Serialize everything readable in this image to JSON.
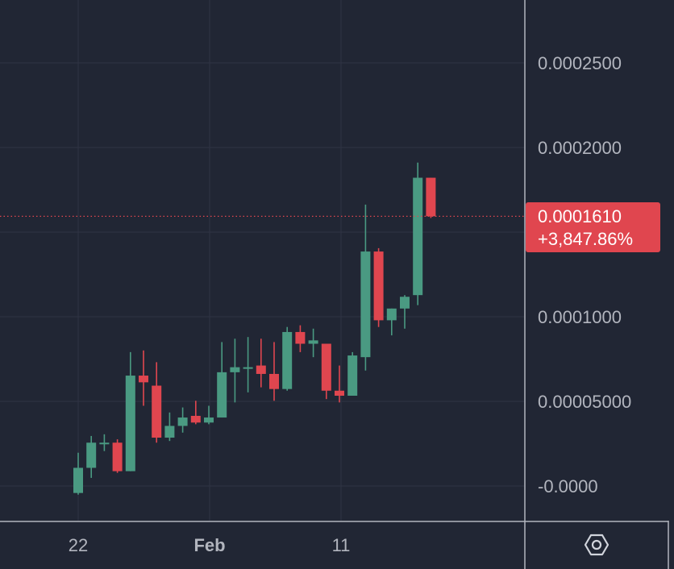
{
  "chart_data": {
    "type": "candlestick",
    "x_labels": [
      "22",
      "Feb",
      "11"
    ],
    "y_ticks": [
      "-0.0000",
      "0.00005000",
      "0.0001000",
      "0.0002000",
      "0.0002500"
    ],
    "ylim": [
      -2.05e-05,
      0.00029
    ],
    "grid": true,
    "colors": {
      "up": "#4a9a82",
      "down": "#e0464f",
      "background": "#212634",
      "grid": "#2f3444"
    },
    "candles": [
      {
        "o": -4e-06,
        "h": 2e-05,
        "l": -5e-06,
        "c": 1.1e-05
      },
      {
        "o": 1.1e-05,
        "h": 3e-05,
        "l": 5e-06,
        "c": 2.6e-05
      },
      {
        "o": 2.6e-05,
        "h": 3.1e-05,
        "l": 2.1e-05,
        "c": 2.6e-05
      },
      {
        "o": 2.6e-05,
        "h": 2.8e-05,
        "l": 8e-06,
        "c": 9e-06
      },
      {
        "o": 9e-06,
        "h": 8e-05,
        "l": 9e-06,
        "c": 6.6e-05
      },
      {
        "o": 6.6e-05,
        "h": 8.1e-05,
        "l": 4.8e-05,
        "c": 6.2e-05
      },
      {
        "o": 6e-05,
        "h": 7.4e-05,
        "l": 2.6e-05,
        "c": 2.9e-05
      },
      {
        "o": 2.9e-05,
        "h": 4.4e-05,
        "l": 2.7e-05,
        "c": 3.6e-05
      },
      {
        "o": 3.6e-05,
        "h": 4.7e-05,
        "l": 3.2e-05,
        "c": 4.1e-05
      },
      {
        "o": 4.2e-05,
        "h": 5.1e-05,
        "l": 3.7e-05,
        "c": 3.8e-05
      },
      {
        "o": 3.8e-05,
        "h": 4.8e-05,
        "l": 3.7e-05,
        "c": 4.1e-05
      },
      {
        "o": 4.1e-05,
        "h": 8.6e-05,
        "l": 4.1e-05,
        "c": 6.8e-05
      },
      {
        "o": 6.8e-05,
        "h": 8.8e-05,
        "l": 5e-05,
        "c": 7.1e-05
      },
      {
        "o": 7.1e-05,
        "h": 8.9e-05,
        "l": 5.6e-05,
        "c": 7.1e-05
      },
      {
        "o": 7.2e-05,
        "h": 8.8e-05,
        "l": 5.9e-05,
        "c": 6.7e-05
      },
      {
        "o": 6.7e-05,
        "h": 8.6e-05,
        "l": 5.1e-05,
        "c": 5.8e-05
      },
      {
        "o": 5.8e-05,
        "h": 9.5e-05,
        "l": 5.7e-05,
        "c": 9.2e-05
      },
      {
        "o": 9.2e-05,
        "h": 9.6e-05,
        "l": 8e-05,
        "c": 8.5e-05
      },
      {
        "o": 8.5e-05,
        "h": 9.4e-05,
        "l": 7.7e-05,
        "c": 8.7e-05
      },
      {
        "o": 8.5e-05,
        "h": 8.5e-05,
        "l": 5.2e-05,
        "c": 5.7e-05
      },
      {
        "o": 5.7e-05,
        "h": 7.2e-05,
        "l": 5e-05,
        "c": 5.4e-05
      },
      {
        "o": 5.4e-05,
        "h": 8e-05,
        "l": 5.4e-05,
        "c": 7.8e-05
      },
      {
        "o": 7.7e-05,
        "h": 0.000168,
        "l": 6.9e-05,
        "c": 0.00014
      },
      {
        "o": 0.00014,
        "h": 0.000142,
        "l": 9.5e-05,
        "c": 9.9e-05
      },
      {
        "o": 9.9e-05,
        "h": 0.000106,
        "l": 9e-05,
        "c": 0.000106
      },
      {
        "o": 0.000106,
        "h": 0.000114,
        "l": 9.4e-05,
        "c": 0.000113
      },
      {
        "o": 0.000114,
        "h": 0.000193,
        "l": 0.000108,
        "c": 0.000184
      },
      {
        "o": 0.000184,
        "h": 0.000184,
        "l": 0.00016,
        "c": 0.000161
      }
    ],
    "last_price": "0.0001610",
    "last_price_value": 0.000161,
    "change_pct": "+3,847.86%"
  },
  "settings_icon": "settings-hexagon-icon"
}
